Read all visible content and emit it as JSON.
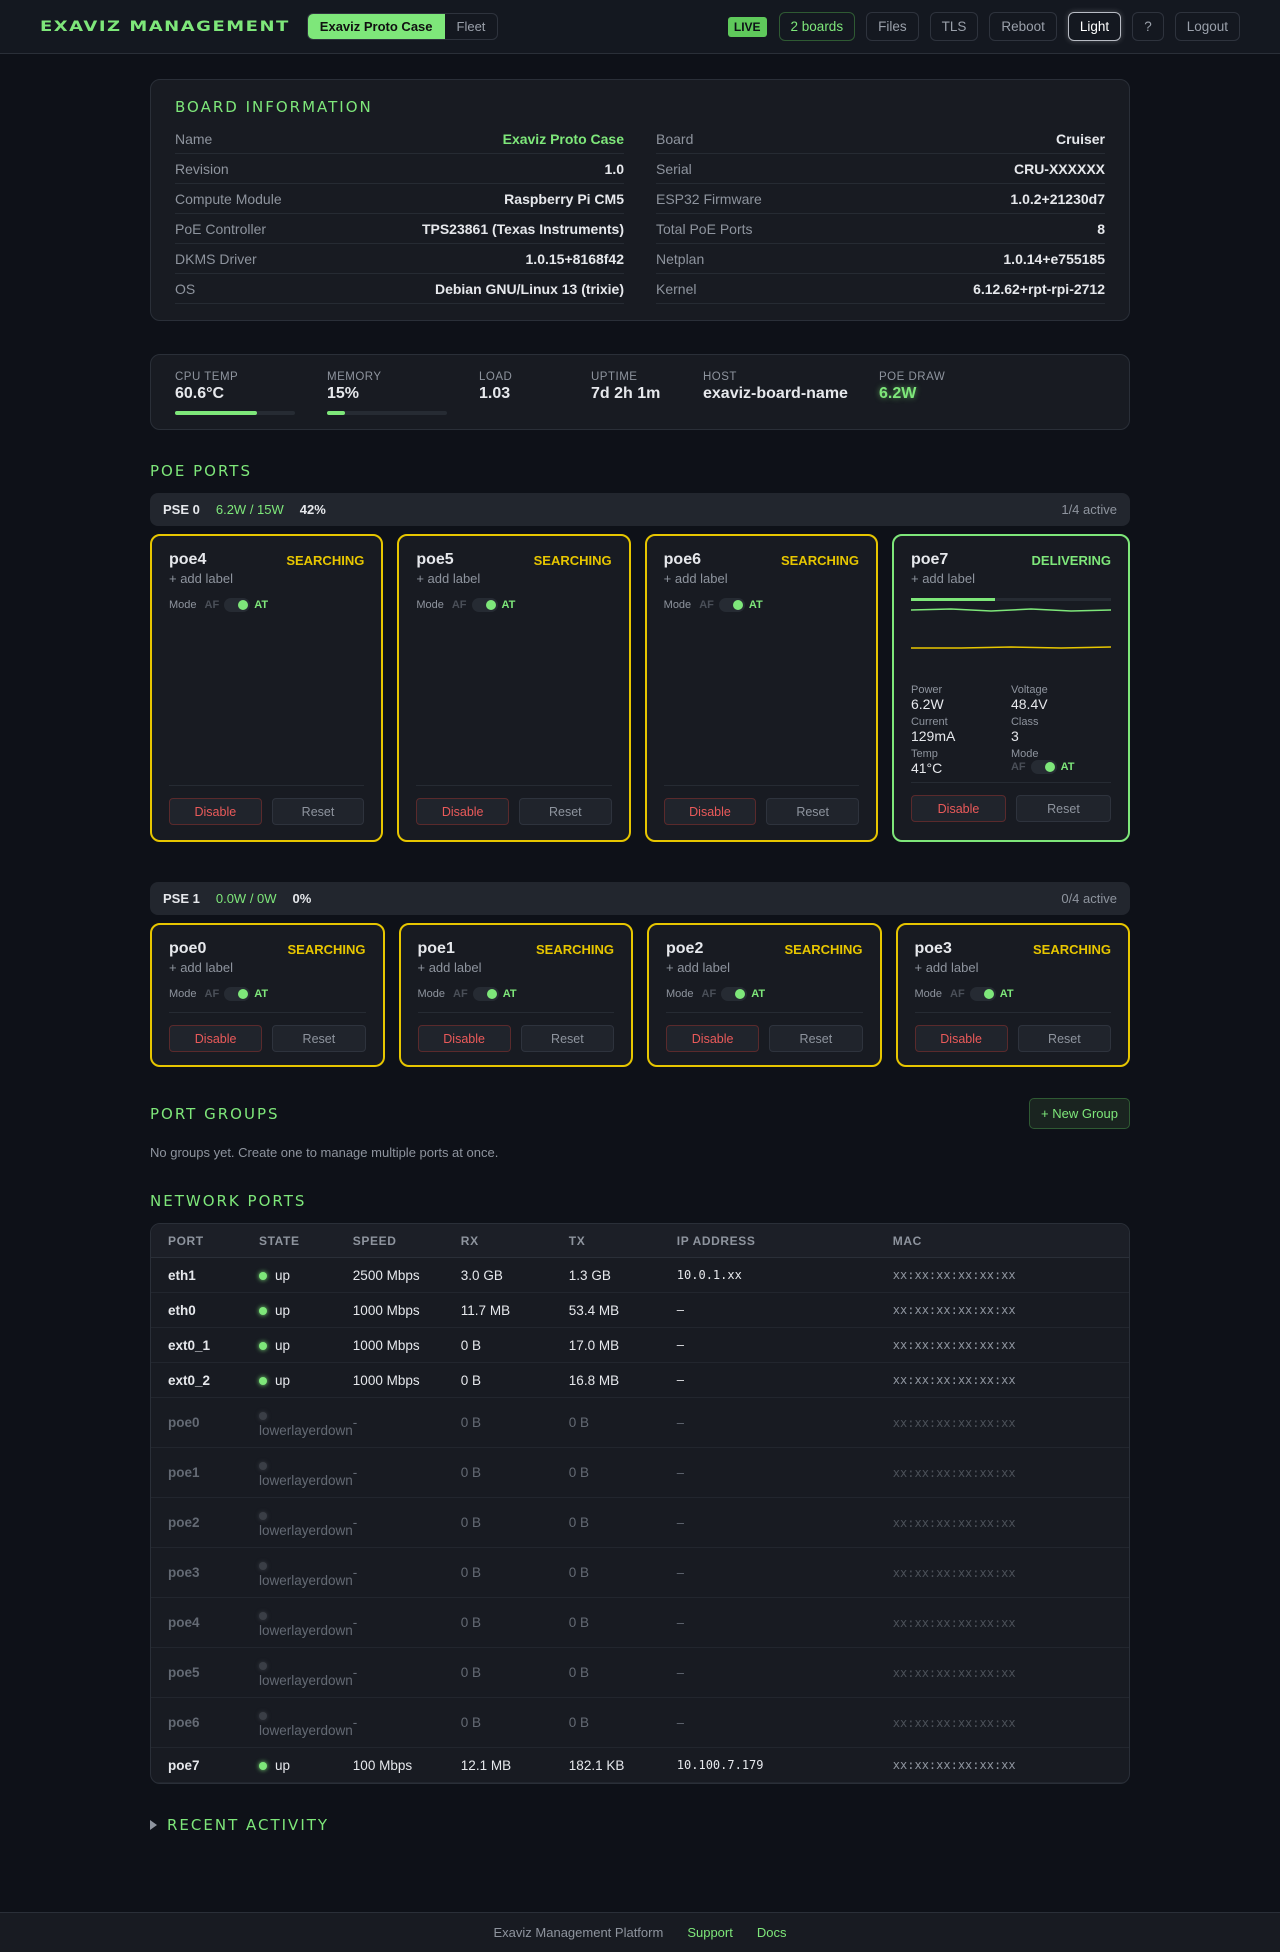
{
  "header": {
    "title": "Exaviz Management",
    "view_tabs": [
      {
        "label": "Exaviz Proto Case",
        "active": true
      },
      {
        "label": "Fleet",
        "active": false
      }
    ],
    "live_badge": "LIVE",
    "buttons": {
      "boards": "2 boards",
      "files": "Files",
      "tls": "TLS",
      "reboot": "Reboot",
      "theme": "Light",
      "help": "?",
      "logout": "Logout"
    }
  },
  "board_info": {
    "title": "Board Information",
    "left": [
      {
        "key": "Name",
        "value": "Exaviz Proto Case"
      },
      {
        "key": "Revision",
        "value": "1.0"
      },
      {
        "key": "Compute Module",
        "value": "Raspberry Pi CM5"
      },
      {
        "key": "PoE Controller",
        "value": "TPS23861 (Texas Instruments)"
      },
      {
        "key": "DKMS Driver",
        "value": "1.0.15+8168f42"
      },
      {
        "key": "OS",
        "value": "Debian GNU/Linux 13 (trixie)"
      }
    ],
    "right": [
      {
        "key": "Board",
        "value": "Cruiser"
      },
      {
        "key": "Serial",
        "value": "CRU-XXXXXX"
      },
      {
        "key": "ESP32 Firmware",
        "value": "1.0.2+21230d7"
      },
      {
        "key": "Total PoE Ports",
        "value": "8"
      },
      {
        "key": "Netplan",
        "value": "1.0.14+e755185"
      },
      {
        "key": "Kernel",
        "value": "6.12.62+rpt-rpi-2712"
      }
    ]
  },
  "stats": {
    "cpu_temp": {
      "label": "CPU TEMP",
      "value": "60.6°C",
      "percent": 68
    },
    "memory": {
      "label": "MEMORY",
      "value": "15%",
      "percent": 15
    },
    "load": {
      "label": "LOAD",
      "value": "1.03"
    },
    "uptime": {
      "label": "UPTIME",
      "value": "7d 2h 1m"
    },
    "host": {
      "label": "HOST",
      "value": "exaviz-board-name"
    },
    "poe_draw": {
      "label": "POE DRAW",
      "value": "6.2W"
    }
  },
  "poe": {
    "title": "PoE Ports",
    "common": {
      "add_label": "+ add label",
      "mode": "Mode",
      "af": "AF",
      "at": "AT",
      "disable": "Disable",
      "reset": "Reset"
    },
    "pse0": {
      "name": "PSE 0",
      "power": "6.2W / 15W",
      "pct": "42%",
      "active": "1/4 active",
      "ports": [
        {
          "name": "poe4",
          "state": "SEARCHING"
        },
        {
          "name": "poe5",
          "state": "SEARCHING"
        },
        {
          "name": "poe6",
          "state": "SEARCHING"
        },
        {
          "name": "poe7",
          "state": "DELIVERING",
          "metrics": {
            "power_label": "Power",
            "power": "6.2W",
            "voltage_label": "Voltage",
            "voltage": "48.4V",
            "current_label": "Current",
            "current": "129mA",
            "class_label": "Class",
            "class": "3",
            "temp_label": "Temp",
            "temp": "41°C"
          }
        }
      ]
    },
    "pse1": {
      "name": "PSE 1",
      "power": "0.0W / 0W",
      "pct": "0%",
      "active": "0/4 active",
      "ports": [
        {
          "name": "poe0",
          "state": "SEARCHING"
        },
        {
          "name": "poe1",
          "state": "SEARCHING"
        },
        {
          "name": "poe2",
          "state": "SEARCHING"
        },
        {
          "name": "poe3",
          "state": "SEARCHING"
        }
      ]
    }
  },
  "groups": {
    "title": "Port Groups",
    "new_button": "+ New Group",
    "empty": "No groups yet. Create one to manage multiple ports at once."
  },
  "network": {
    "title": "Network Ports",
    "columns": [
      "PORT",
      "STATE",
      "SPEED",
      "RX",
      "TX",
      "IP ADDRESS",
      "MAC"
    ],
    "rows": [
      {
        "port": "eth1",
        "state": "up",
        "speed": "2500 Mbps",
        "rx": "3.0 GB",
        "tx": "1.3 GB",
        "ip": "10.0.1.xx",
        "mac": "xx:xx:xx:xx:xx:xx"
      },
      {
        "port": "eth0",
        "state": "up",
        "speed": "1000 Mbps",
        "rx": "11.7 MB",
        "tx": "53.4 MB",
        "ip": "–",
        "mac": "xx:xx:xx:xx:xx:xx"
      },
      {
        "port": "ext0_1",
        "state": "up",
        "speed": "1000 Mbps",
        "rx": "0 B",
        "tx": "17.0 MB",
        "ip": "–",
        "mac": "xx:xx:xx:xx:xx:xx"
      },
      {
        "port": "ext0_2",
        "state": "up",
        "speed": "1000 Mbps",
        "rx": "0 B",
        "tx": "16.8 MB",
        "ip": "–",
        "mac": "xx:xx:xx:xx:xx:xx"
      },
      {
        "port": "poe0",
        "state": "lowerlayerdown",
        "speed": "-",
        "rx": "0 B",
        "tx": "0 B",
        "ip": "–",
        "mac": "xx:xx:xx:xx:xx:xx"
      },
      {
        "port": "poe1",
        "state": "lowerlayerdown",
        "speed": "-",
        "rx": "0 B",
        "tx": "0 B",
        "ip": "–",
        "mac": "xx:xx:xx:xx:xx:xx"
      },
      {
        "port": "poe2",
        "state": "lowerlayerdown",
        "speed": "-",
        "rx": "0 B",
        "tx": "0 B",
        "ip": "–",
        "mac": "xx:xx:xx:xx:xx:xx"
      },
      {
        "port": "poe3",
        "state": "lowerlayerdown",
        "speed": "-",
        "rx": "0 B",
        "tx": "0 B",
        "ip": "–",
        "mac": "xx:xx:xx:xx:xx:xx"
      },
      {
        "port": "poe4",
        "state": "lowerlayerdown",
        "speed": "-",
        "rx": "0 B",
        "tx": "0 B",
        "ip": "–",
        "mac": "xx:xx:xx:xx:xx:xx"
      },
      {
        "port": "poe5",
        "state": "lowerlayerdown",
        "speed": "-",
        "rx": "0 B",
        "tx": "0 B",
        "ip": "–",
        "mac": "xx:xx:xx:xx:xx:xx"
      },
      {
        "port": "poe6",
        "state": "lowerlayerdown",
        "speed": "-",
        "rx": "0 B",
        "tx": "0 B",
        "ip": "–",
        "mac": "xx:xx:xx:xx:xx:xx"
      },
      {
        "port": "poe7",
        "state": "up",
        "speed": "100 Mbps",
        "rx": "12.1 MB",
        "tx": "182.1 KB",
        "ip": "10.100.7.179",
        "mac": "xx:xx:xx:xx:xx:xx"
      }
    ]
  },
  "recent": {
    "title": "Recent Activity"
  },
  "footer": {
    "platform": "Exaviz Management Platform",
    "support": "Support",
    "docs": "Docs"
  },
  "colors": {
    "accent": "#7ee77a",
    "searching": "#e7c600",
    "danger": "#ea5a5a",
    "bg": "#0e1118"
  }
}
